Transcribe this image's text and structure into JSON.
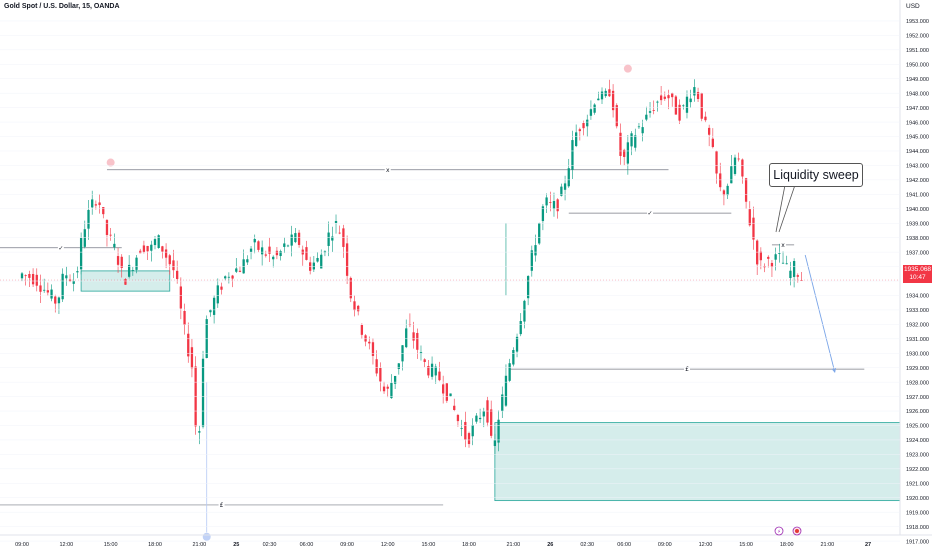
{
  "chart_data": {
    "type": "candlestick",
    "title": "Gold Spot / U.S. Dollar, 15, OANDA",
    "price_axis_unit": "USD",
    "y_range": [
      1916.5,
      1954.0
    ],
    "y_ticks": [
      1917,
      1918,
      1919,
      1920,
      1921,
      1922,
      1923,
      1924,
      1925,
      1926,
      1927,
      1928,
      1929,
      1930,
      1931,
      1932,
      1933,
      1934,
      1935,
      1936,
      1937,
      1938,
      1939,
      1940,
      1941,
      1942,
      1943,
      1944,
      1945,
      1946,
      1947,
      1948,
      1949,
      1950,
      1951,
      1952,
      1953
    ],
    "x_ticks": [
      {
        "label": "09:00",
        "bar": 0
      },
      {
        "label": "12:00",
        "bar": 12
      },
      {
        "label": "15:00",
        "bar": 24
      },
      {
        "label": "18:00",
        "bar": 36
      },
      {
        "label": "21:00",
        "bar": 48
      },
      {
        "label": "25",
        "bar": 58
      },
      {
        "label": "02:30",
        "bar": 67
      },
      {
        "label": "06:00",
        "bar": 77
      },
      {
        "label": "09:00",
        "bar": 88
      },
      {
        "label": "12:00",
        "bar": 99
      },
      {
        "label": "15:00",
        "bar": 110
      },
      {
        "label": "18:00",
        "bar": 121
      },
      {
        "label": "21:00",
        "bar": 133
      },
      {
        "label": "26",
        "bar": 143
      },
      {
        "label": "02:30",
        "bar": 153
      },
      {
        "label": "06:00",
        "bar": 163
      },
      {
        "label": "09:00",
        "bar": 174
      },
      {
        "label": "12:00",
        "bar": 185
      },
      {
        "label": "15:00",
        "bar": 196
      },
      {
        "label": "18:00",
        "bar": 207
      },
      {
        "label": "21:00",
        "bar": 218
      },
      {
        "label": "27",
        "bar": 229
      }
    ],
    "bar_count": 246,
    "bull_color": "#089981",
    "bear_color": "#f23645",
    "last_price": "1935.068",
    "countdown": "10:47",
    "series_path": [
      [
        0,
        1935.5
      ],
      [
        4,
        1935.2
      ],
      [
        8,
        1934.0
      ],
      [
        10,
        1933.5
      ],
      [
        12,
        1935.6
      ],
      [
        15,
        1935.0
      ],
      [
        17,
        1938.5
      ],
      [
        19,
        1940.0
      ],
      [
        21,
        1941.0
      ],
      [
        23,
        1938.5
      ],
      [
        26,
        1937.0
      ],
      [
        28,
        1935.0
      ],
      [
        31,
        1936.5
      ],
      [
        33,
        1937.6
      ],
      [
        35,
        1937.0
      ],
      [
        37,
        1938.0
      ],
      [
        39,
        1937.0
      ],
      [
        42,
        1935.5
      ],
      [
        44,
        1932.0
      ],
      [
        47,
        1928.5
      ],
      [
        48,
        1921.5
      ],
      [
        49,
        1928.0
      ],
      [
        50,
        1932.0
      ],
      [
        53,
        1934.0
      ],
      [
        56,
        1935.5
      ],
      [
        60,
        1936.0
      ],
      [
        63,
        1937.5
      ],
      [
        66,
        1937.0
      ],
      [
        69,
        1936.5
      ],
      [
        72,
        1937.5
      ],
      [
        75,
        1938.0
      ],
      [
        78,
        1936.0
      ],
      [
        81,
        1936.5
      ],
      [
        84,
        1938.5
      ],
      [
        86,
        1939.0
      ],
      [
        88,
        1937.0
      ],
      [
        89,
        1934.5
      ],
      [
        92,
        1932.0
      ],
      [
        95,
        1930.0
      ],
      [
        99,
        1927.0
      ],
      [
        102,
        1929.0
      ],
      [
        105,
        1932.0
      ],
      [
        108,
        1930.0
      ],
      [
        110,
        1929.0
      ],
      [
        113,
        1928.5
      ],
      [
        116,
        1927.0
      ],
      [
        119,
        1925.0
      ],
      [
        121,
        1924.0
      ],
      [
        124,
        1925.5
      ],
      [
        126,
        1926.5
      ],
      [
        127,
        1925.0
      ],
      [
        128,
        1922.5
      ],
      [
        129,
        1925.0
      ],
      [
        131,
        1927.5
      ],
      [
        133,
        1930.0
      ],
      [
        135,
        1932.0
      ],
      [
        138,
        1936.0
      ],
      [
        140,
        1938.5
      ],
      [
        142,
        1940.5
      ],
      [
        144,
        1940.0
      ],
      [
        146,
        1940.5
      ],
      [
        148,
        1942.5
      ],
      [
        150,
        1945.0
      ],
      [
        152,
        1946.0
      ],
      [
        154,
        1946.5
      ],
      [
        156,
        1948.0
      ],
      [
        158,
        1947.5
      ],
      [
        160,
        1948.5
      ],
      [
        161,
        1946.0
      ],
      [
        163,
        1943.0
      ],
      [
        165,
        1944.5
      ],
      [
        167,
        1945.5
      ],
      [
        169,
        1946.0
      ],
      [
        171,
        1947.0
      ],
      [
        173,
        1947.5
      ],
      [
        175,
        1948.0
      ],
      [
        177,
        1947.0
      ],
      [
        179,
        1946.5
      ],
      [
        181,
        1948.0
      ],
      [
        183,
        1948.5
      ],
      [
        185,
        1946.0
      ],
      [
        187,
        1944.5
      ],
      [
        189,
        1941.5
      ],
      [
        190,
        1941.0
      ],
      [
        192,
        1942.0
      ],
      [
        194,
        1944.0
      ],
      [
        196,
        1941.0
      ],
      [
        198,
        1938.5
      ],
      [
        200,
        1936.0
      ],
      [
        203,
        1936.5
      ],
      [
        206,
        1936.5
      ],
      [
        208,
        1935.5
      ],
      [
        210,
        1936.0
      ],
      [
        211,
        1935.2
      ]
    ],
    "annotations": {
      "zones": [
        {
          "x": [
            16,
            40
          ],
          "y": [
            1934.3,
            1935.7
          ],
          "fill": "#b2dfdb",
          "stroke": "#26a69a"
        },
        {
          "x": [
            128,
            246
          ],
          "y": [
            1919.8,
            1925.2
          ],
          "fill": "#b2dfdb",
          "stroke": "#26a69a"
        }
      ],
      "lines": [
        {
          "x": [
            23,
            175
          ],
          "y": 1942.7,
          "label": "x",
          "circle": "top"
        },
        {
          "x": [
            148,
            192
          ],
          "y": 1939.7,
          "label": "✓"
        },
        {
          "x": [
            -6,
            27
          ],
          "y": 1937.3,
          "label": "✓"
        },
        {
          "x": [
            132,
            228
          ],
          "y": 1928.9,
          "label": "£"
        },
        {
          "x": [
            -6,
            114
          ],
          "y": 1919.5,
          "label": "£"
        },
        {
          "x": [
            203,
            209
          ],
          "y": 1937.5,
          "label": "x"
        }
      ],
      "circle_markers": [
        {
          "bar": 24,
          "price": 1943.2,
          "color": "#f7b9c1"
        },
        {
          "bar": 164,
          "price": 1949.7,
          "color": "#f7b9c1"
        },
        {
          "bar": 50,
          "price": 1917.3,
          "color": "#b5c9f5"
        }
      ],
      "callout_text": "Liquidity sweep",
      "arrow": {
        "from": [
          212,
          1936.8
        ],
        "to": [
          220,
          1928.7
        ]
      }
    }
  },
  "colors": {
    "panel_grid": "#f0f3fa",
    "axis_text": "#131722",
    "badge_bg": "#f23645",
    "line": "#787b86",
    "arrow": "#7aa5e8"
  }
}
